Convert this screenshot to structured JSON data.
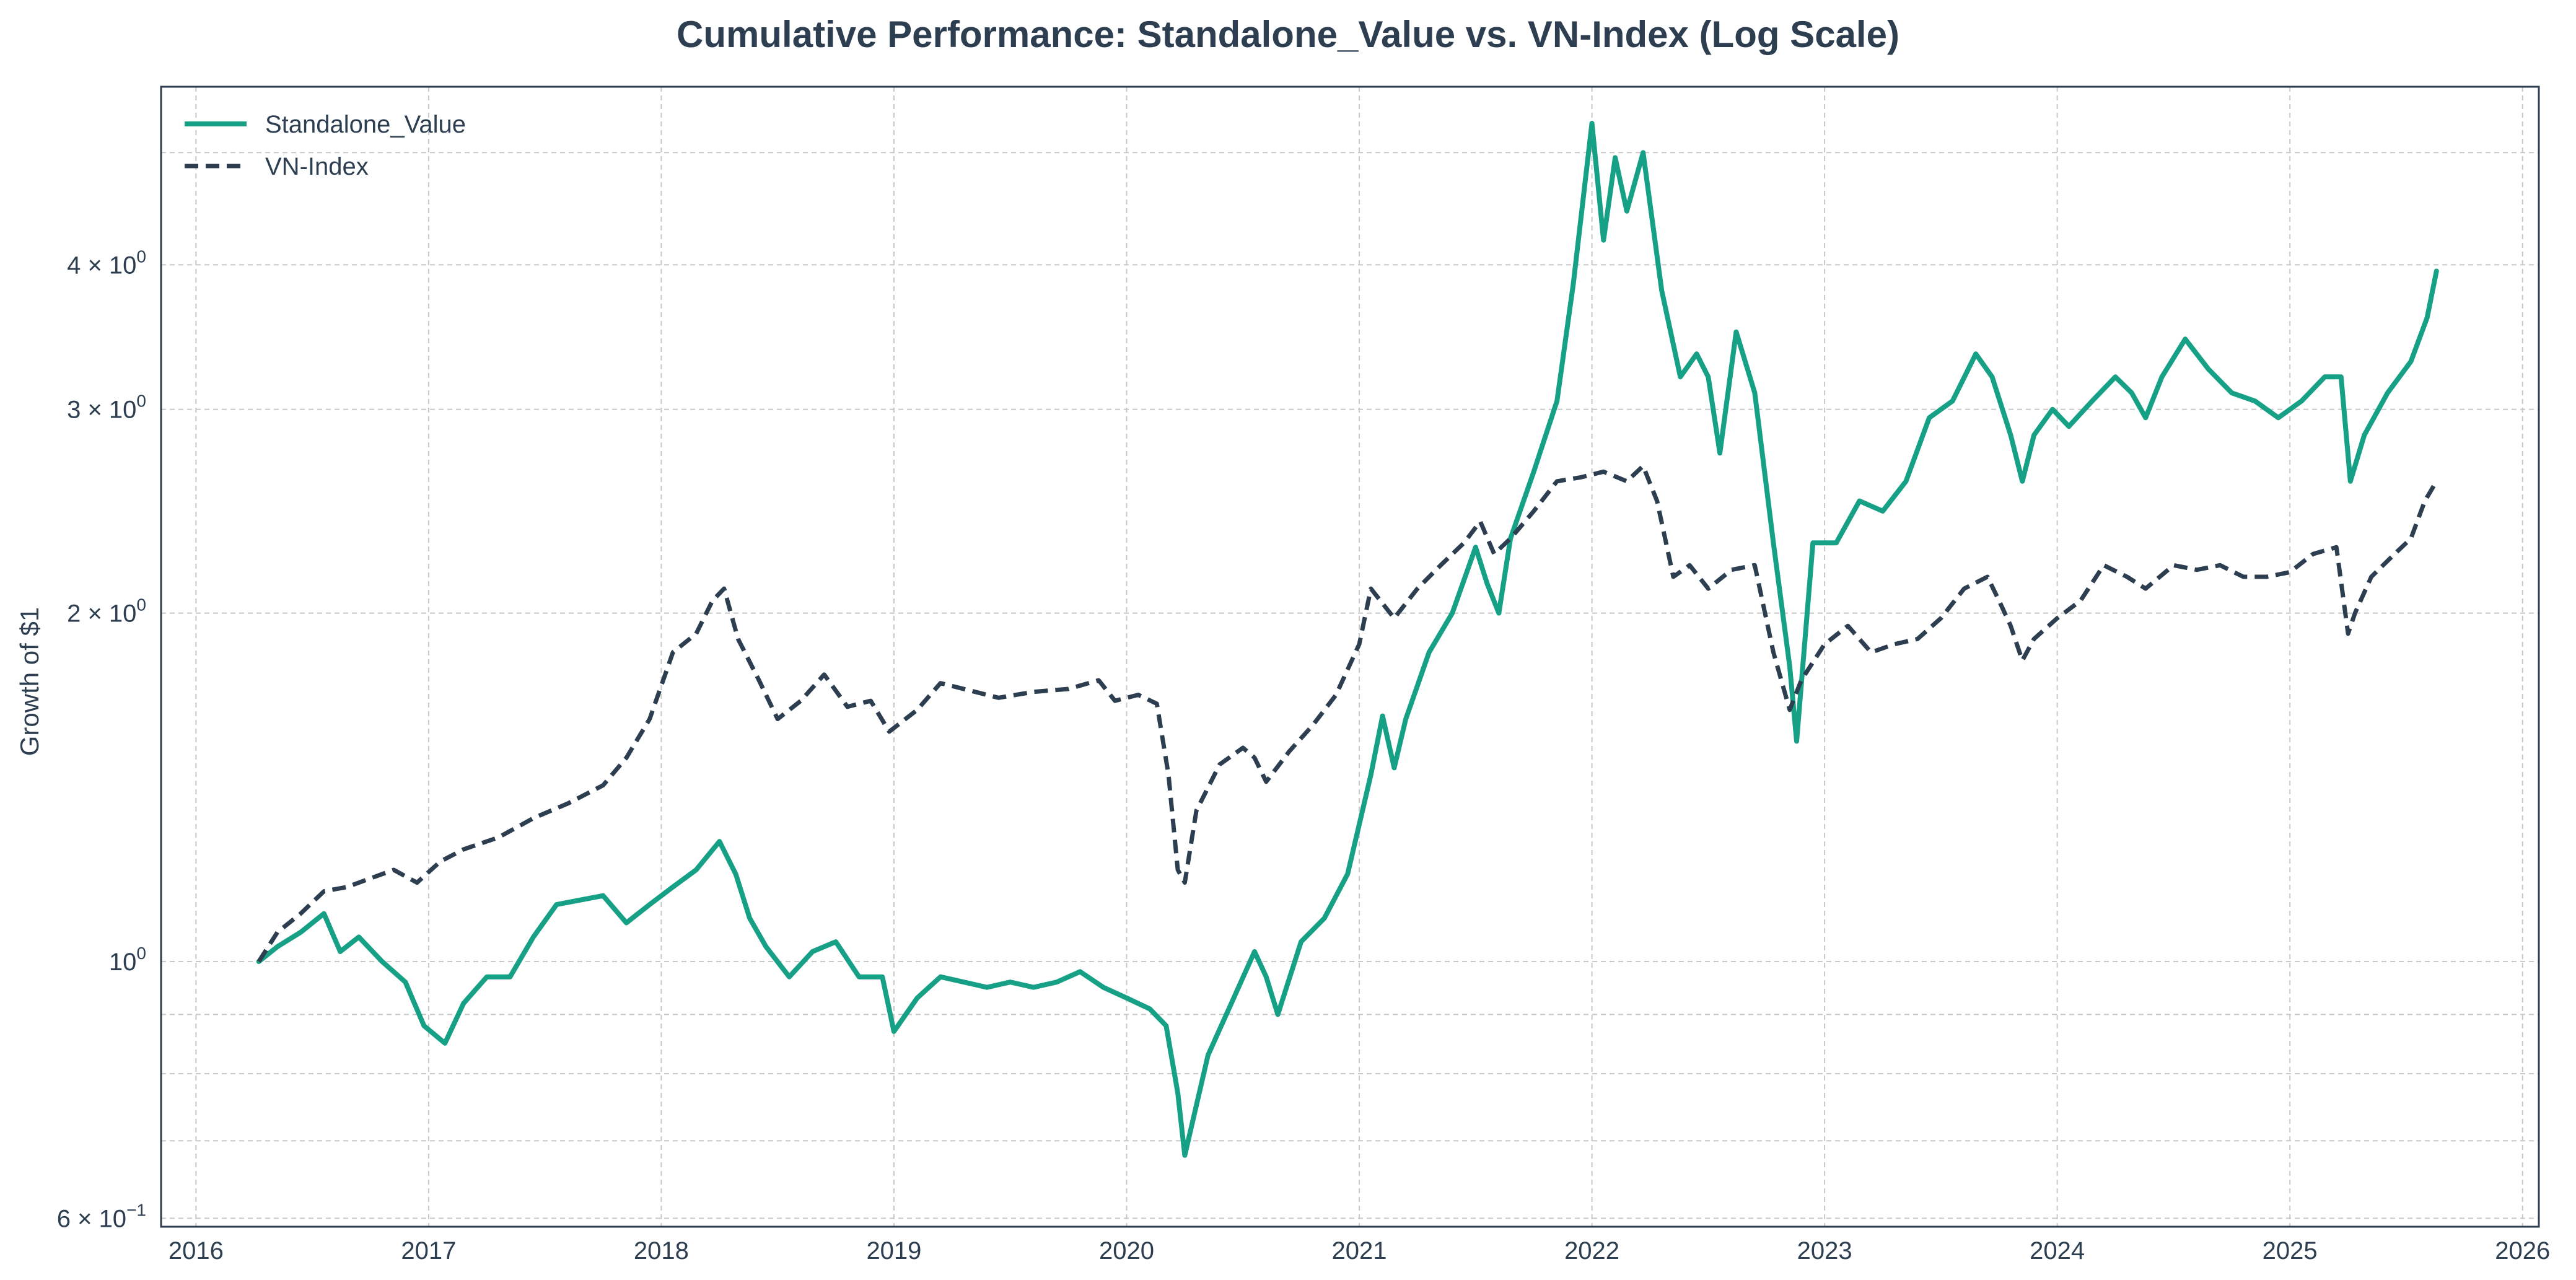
{
  "chart_data": {
    "type": "line",
    "title": "Cumulative Performance: Standalone_Value vs. VN-Index (Log Scale)",
    "xlabel": "",
    "ylabel": "Growth of $1",
    "y_scale": "log",
    "xlim": [
      2015.85,
      2026.07
    ],
    "ylim": [
      0.59,
      5.7
    ],
    "x_ticks": [
      2016,
      2017,
      2018,
      2019,
      2020,
      2021,
      2022,
      2023,
      2024,
      2025,
      2026
    ],
    "x_tick_labels": [
      "2016",
      "2017",
      "2018",
      "2019",
      "2020",
      "2021",
      "2022",
      "2023",
      "2024",
      "2025",
      "2026"
    ],
    "y_major_ticks": [
      {
        "value": 0.6,
        "mantissa": "6",
        "base": "10",
        "exp": "−1"
      },
      {
        "value": 1,
        "mantissa": "",
        "base": "10",
        "exp": "0"
      },
      {
        "value": 2,
        "mantissa": "2",
        "base": "10",
        "exp": "0"
      },
      {
        "value": 3,
        "mantissa": "3",
        "base": "10",
        "exp": "0"
      },
      {
        "value": 4,
        "mantissa": "4",
        "base": "10",
        "exp": "0"
      }
    ],
    "y_minor_grid": [
      0.7,
      0.8,
      0.9,
      5
    ],
    "grid": true,
    "legend_position": "top-left",
    "series": [
      {
        "name": "Standalone_Value",
        "color": "#16a085",
        "style": "solid",
        "points": [
          [
            2016.27,
            1.0
          ],
          [
            2016.35,
            1.03
          ],
          [
            2016.45,
            1.06
          ],
          [
            2016.55,
            1.1
          ],
          [
            2016.62,
            1.02
          ],
          [
            2016.7,
            1.05
          ],
          [
            2016.8,
            1.0
          ],
          [
            2016.9,
            0.96
          ],
          [
            2016.98,
            0.88
          ],
          [
            2017.07,
            0.85
          ],
          [
            2017.15,
            0.92
          ],
          [
            2017.25,
            0.97
          ],
          [
            2017.35,
            0.97
          ],
          [
            2017.45,
            1.05
          ],
          [
            2017.55,
            1.12
          ],
          [
            2017.65,
            1.13
          ],
          [
            2017.75,
            1.14
          ],
          [
            2017.85,
            1.08
          ],
          [
            2017.95,
            1.12
          ],
          [
            2018.05,
            1.16
          ],
          [
            2018.15,
            1.2
          ],
          [
            2018.25,
            1.27
          ],
          [
            2018.32,
            1.19
          ],
          [
            2018.38,
            1.09
          ],
          [
            2018.45,
            1.03
          ],
          [
            2018.55,
            0.97
          ],
          [
            2018.65,
            1.02
          ],
          [
            2018.75,
            1.04
          ],
          [
            2018.85,
            0.97
          ],
          [
            2018.95,
            0.97
          ],
          [
            2019.0,
            0.87
          ],
          [
            2019.1,
            0.93
          ],
          [
            2019.2,
            0.97
          ],
          [
            2019.3,
            0.96
          ],
          [
            2019.4,
            0.95
          ],
          [
            2019.5,
            0.96
          ],
          [
            2019.6,
            0.95
          ],
          [
            2019.7,
            0.96
          ],
          [
            2019.8,
            0.98
          ],
          [
            2019.9,
            0.95
          ],
          [
            2020.0,
            0.93
          ],
          [
            2020.1,
            0.91
          ],
          [
            2020.17,
            0.88
          ],
          [
            2020.22,
            0.77
          ],
          [
            2020.25,
            0.68
          ],
          [
            2020.35,
            0.83
          ],
          [
            2020.45,
            0.92
          ],
          [
            2020.55,
            1.02
          ],
          [
            2020.6,
            0.97
          ],
          [
            2020.65,
            0.9
          ],
          [
            2020.75,
            1.04
          ],
          [
            2020.85,
            1.09
          ],
          [
            2020.95,
            1.19
          ],
          [
            2021.05,
            1.45
          ],
          [
            2021.1,
            1.63
          ],
          [
            2021.15,
            1.47
          ],
          [
            2021.2,
            1.62
          ],
          [
            2021.3,
            1.85
          ],
          [
            2021.4,
            2.0
          ],
          [
            2021.5,
            2.28
          ],
          [
            2021.55,
            2.12
          ],
          [
            2021.6,
            2.0
          ],
          [
            2021.65,
            2.32
          ],
          [
            2021.75,
            2.65
          ],
          [
            2021.85,
            3.05
          ],
          [
            2021.92,
            3.85
          ],
          [
            2022.0,
            5.3
          ],
          [
            2022.05,
            4.2
          ],
          [
            2022.1,
            4.95
          ],
          [
            2022.15,
            4.45
          ],
          [
            2022.22,
            5.0
          ],
          [
            2022.3,
            3.8
          ],
          [
            2022.38,
            3.2
          ],
          [
            2022.45,
            3.35
          ],
          [
            2022.5,
            3.2
          ],
          [
            2022.55,
            2.75
          ],
          [
            2022.62,
            3.5
          ],
          [
            2022.7,
            3.1
          ],
          [
            2022.78,
            2.3
          ],
          [
            2022.85,
            1.8
          ],
          [
            2022.88,
            1.55
          ],
          [
            2022.95,
            2.3
          ],
          [
            2023.05,
            2.3
          ],
          [
            2023.15,
            2.5
          ],
          [
            2023.25,
            2.45
          ],
          [
            2023.35,
            2.6
          ],
          [
            2023.45,
            2.95
          ],
          [
            2023.55,
            3.05
          ],
          [
            2023.65,
            3.35
          ],
          [
            2023.72,
            3.2
          ],
          [
            2023.8,
            2.85
          ],
          [
            2023.85,
            2.6
          ],
          [
            2023.9,
            2.85
          ],
          [
            2023.98,
            3.0
          ],
          [
            2024.05,
            2.9
          ],
          [
            2024.15,
            3.05
          ],
          [
            2024.25,
            3.2
          ],
          [
            2024.32,
            3.1
          ],
          [
            2024.38,
            2.95
          ],
          [
            2024.45,
            3.2
          ],
          [
            2024.55,
            3.45
          ],
          [
            2024.65,
            3.25
          ],
          [
            2024.75,
            3.1
          ],
          [
            2024.85,
            3.05
          ],
          [
            2024.95,
            2.95
          ],
          [
            2025.05,
            3.05
          ],
          [
            2025.15,
            3.2
          ],
          [
            2025.22,
            3.2
          ],
          [
            2025.26,
            2.6
          ],
          [
            2025.32,
            2.85
          ],
          [
            2025.42,
            3.1
          ],
          [
            2025.52,
            3.3
          ],
          [
            2025.59,
            3.6
          ],
          [
            2025.63,
            3.95
          ]
        ]
      },
      {
        "name": "VN-Index",
        "color": "#2c3e50",
        "style": "dashed",
        "points": [
          [
            2016.27,
            1.0
          ],
          [
            2016.35,
            1.06
          ],
          [
            2016.45,
            1.1
          ],
          [
            2016.55,
            1.15
          ],
          [
            2016.65,
            1.16
          ],
          [
            2016.75,
            1.18
          ],
          [
            2016.85,
            1.2
          ],
          [
            2016.95,
            1.17
          ],
          [
            2017.05,
            1.22
          ],
          [
            2017.15,
            1.25
          ],
          [
            2017.3,
            1.28
          ],
          [
            2017.45,
            1.33
          ],
          [
            2017.6,
            1.37
          ],
          [
            2017.75,
            1.42
          ],
          [
            2017.85,
            1.5
          ],
          [
            2017.95,
            1.62
          ],
          [
            2018.05,
            1.85
          ],
          [
            2018.15,
            1.92
          ],
          [
            2018.22,
            2.05
          ],
          [
            2018.27,
            2.1
          ],
          [
            2018.33,
            1.9
          ],
          [
            2018.42,
            1.75
          ],
          [
            2018.5,
            1.62
          ],
          [
            2018.6,
            1.68
          ],
          [
            2018.7,
            1.77
          ],
          [
            2018.8,
            1.66
          ],
          [
            2018.9,
            1.68
          ],
          [
            2018.98,
            1.58
          ],
          [
            2019.1,
            1.65
          ],
          [
            2019.2,
            1.74
          ],
          [
            2019.3,
            1.72
          ],
          [
            2019.45,
            1.69
          ],
          [
            2019.6,
            1.71
          ],
          [
            2019.75,
            1.72
          ],
          [
            2019.88,
            1.75
          ],
          [
            2019.95,
            1.68
          ],
          [
            2020.05,
            1.7
          ],
          [
            2020.13,
            1.67
          ],
          [
            2020.18,
            1.45
          ],
          [
            2020.22,
            1.2
          ],
          [
            2020.25,
            1.17
          ],
          [
            2020.3,
            1.35
          ],
          [
            2020.4,
            1.48
          ],
          [
            2020.5,
            1.53
          ],
          [
            2020.55,
            1.5
          ],
          [
            2020.6,
            1.43
          ],
          [
            2020.7,
            1.52
          ],
          [
            2020.8,
            1.6
          ],
          [
            2020.9,
            1.7
          ],
          [
            2021.0,
            1.88
          ],
          [
            2021.05,
            2.1
          ],
          [
            2021.15,
            1.98
          ],
          [
            2021.25,
            2.1
          ],
          [
            2021.35,
            2.2
          ],
          [
            2021.45,
            2.3
          ],
          [
            2021.52,
            2.4
          ],
          [
            2021.58,
            2.25
          ],
          [
            2021.65,
            2.32
          ],
          [
            2021.75,
            2.45
          ],
          [
            2021.85,
            2.6
          ],
          [
            2021.95,
            2.62
          ],
          [
            2022.05,
            2.65
          ],
          [
            2022.15,
            2.6
          ],
          [
            2022.22,
            2.68
          ],
          [
            2022.28,
            2.5
          ],
          [
            2022.35,
            2.15
          ],
          [
            2022.42,
            2.2
          ],
          [
            2022.5,
            2.1
          ],
          [
            2022.6,
            2.18
          ],
          [
            2022.7,
            2.2
          ],
          [
            2022.78,
            1.85
          ],
          [
            2022.85,
            1.65
          ],
          [
            2022.9,
            1.75
          ],
          [
            2023.0,
            1.88
          ],
          [
            2023.1,
            1.95
          ],
          [
            2023.2,
            1.85
          ],
          [
            2023.3,
            1.88
          ],
          [
            2023.4,
            1.9
          ],
          [
            2023.5,
            1.98
          ],
          [
            2023.6,
            2.1
          ],
          [
            2023.7,
            2.15
          ],
          [
            2023.75,
            2.05
          ],
          [
            2023.8,
            1.95
          ],
          [
            2023.85,
            1.82
          ],
          [
            2023.9,
            1.9
          ],
          [
            2024.0,
            1.98
          ],
          [
            2024.1,
            2.05
          ],
          [
            2024.2,
            2.2
          ],
          [
            2024.3,
            2.15
          ],
          [
            2024.38,
            2.1
          ],
          [
            2024.5,
            2.2
          ],
          [
            2024.6,
            2.18
          ],
          [
            2024.7,
            2.2
          ],
          [
            2024.8,
            2.15
          ],
          [
            2024.9,
            2.15
          ],
          [
            2025.0,
            2.17
          ],
          [
            2025.1,
            2.25
          ],
          [
            2025.2,
            2.28
          ],
          [
            2025.25,
            1.92
          ],
          [
            2025.28,
            2.0
          ],
          [
            2025.35,
            2.15
          ],
          [
            2025.45,
            2.25
          ],
          [
            2025.52,
            2.32
          ],
          [
            2025.58,
            2.5
          ],
          [
            2025.63,
            2.6
          ]
        ]
      }
    ]
  }
}
